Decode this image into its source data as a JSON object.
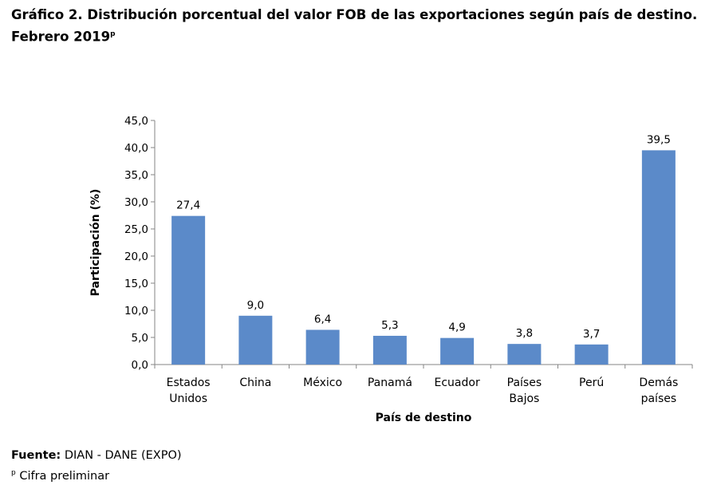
{
  "title": {
    "line1": "Gráfico 2. Distribución porcentual del valor FOB de las exportaciones según país de destino.",
    "line2": "Febrero 2019",
    "superscript": "p"
  },
  "footer": {
    "source_label": "Fuente:",
    "source_text": "DIAN - DANE (EXPO)",
    "note_mark": "p",
    "note_text": "Cifra preliminar"
  },
  "chart_data": {
    "type": "bar",
    "categories": [
      [
        "Estados",
        "Unidos"
      ],
      [
        "China"
      ],
      [
        "México"
      ],
      [
        "Panamá"
      ],
      [
        "Ecuador"
      ],
      [
        "Países",
        "Bajos"
      ],
      [
        "Perú"
      ],
      [
        "Demás",
        "países"
      ]
    ],
    "values": [
      27.4,
      9.0,
      6.4,
      5.3,
      4.9,
      3.8,
      3.7,
      39.5
    ],
    "value_labels": [
      "27,4",
      "9,0",
      "6,4",
      "5,3",
      "4,9",
      "3,8",
      "3,7",
      "39,5"
    ],
    "ylim": [
      0,
      45
    ],
    "yticks": [
      "0,0",
      "5,0",
      "10,0",
      "15,0",
      "20,0",
      "25,0",
      "30,0",
      "35,0",
      "40,0",
      "45,0"
    ],
    "xlabel": "País de destino",
    "ylabel": "Participación (%)",
    "bar_color": "#5B8AC9",
    "grid": false,
    "legend": "none"
  }
}
